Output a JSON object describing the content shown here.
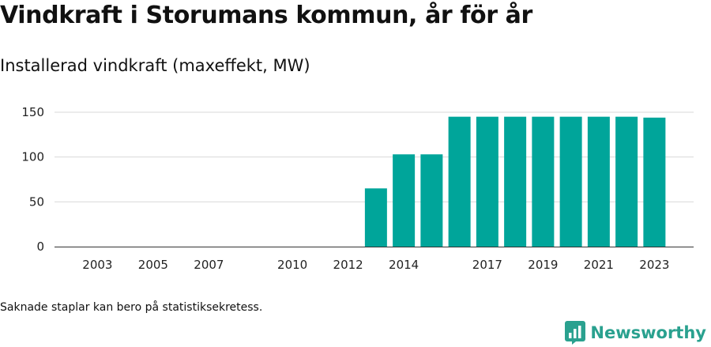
{
  "title": "Vindkraft i Storumans kommun, år för år",
  "subtitle": "Installerad vindkraft (maxeffekt, MW)",
  "footnote": "Saknade staplar kan bero på statistiksekretess.",
  "brand": {
    "name": "Newsworthy",
    "color": "#2aa18f"
  },
  "chart_data": {
    "type": "bar",
    "title": "Vindkraft i Storumans kommun, år för år",
    "ylabel": "Installerad vindkraft (maxeffekt, MW)",
    "xlabel": "",
    "color": "#00a59a",
    "categories": [
      "2002",
      "2003",
      "2004",
      "2005",
      "2006",
      "2007",
      "2008",
      "2009",
      "2010",
      "2011",
      "2012",
      "2013",
      "2014",
      "2015",
      "2016",
      "2017",
      "2018",
      "2019",
      "2020",
      "2021",
      "2022",
      "2023"
    ],
    "values": [
      0,
      0,
      0,
      0,
      0,
      0,
      0,
      0,
      0,
      0,
      0,
      65,
      103,
      103,
      145,
      145,
      145,
      145,
      145,
      145,
      145,
      144
    ],
    "x_tick_labels": [
      "2003",
      "2005",
      "2007",
      "2010",
      "2012",
      "2014",
      "2017",
      "2019",
      "2021",
      "2023"
    ],
    "y_ticks": [
      0,
      50,
      100,
      150
    ],
    "ylim": [
      0,
      150
    ],
    "grid": true,
    "legend": "none"
  }
}
